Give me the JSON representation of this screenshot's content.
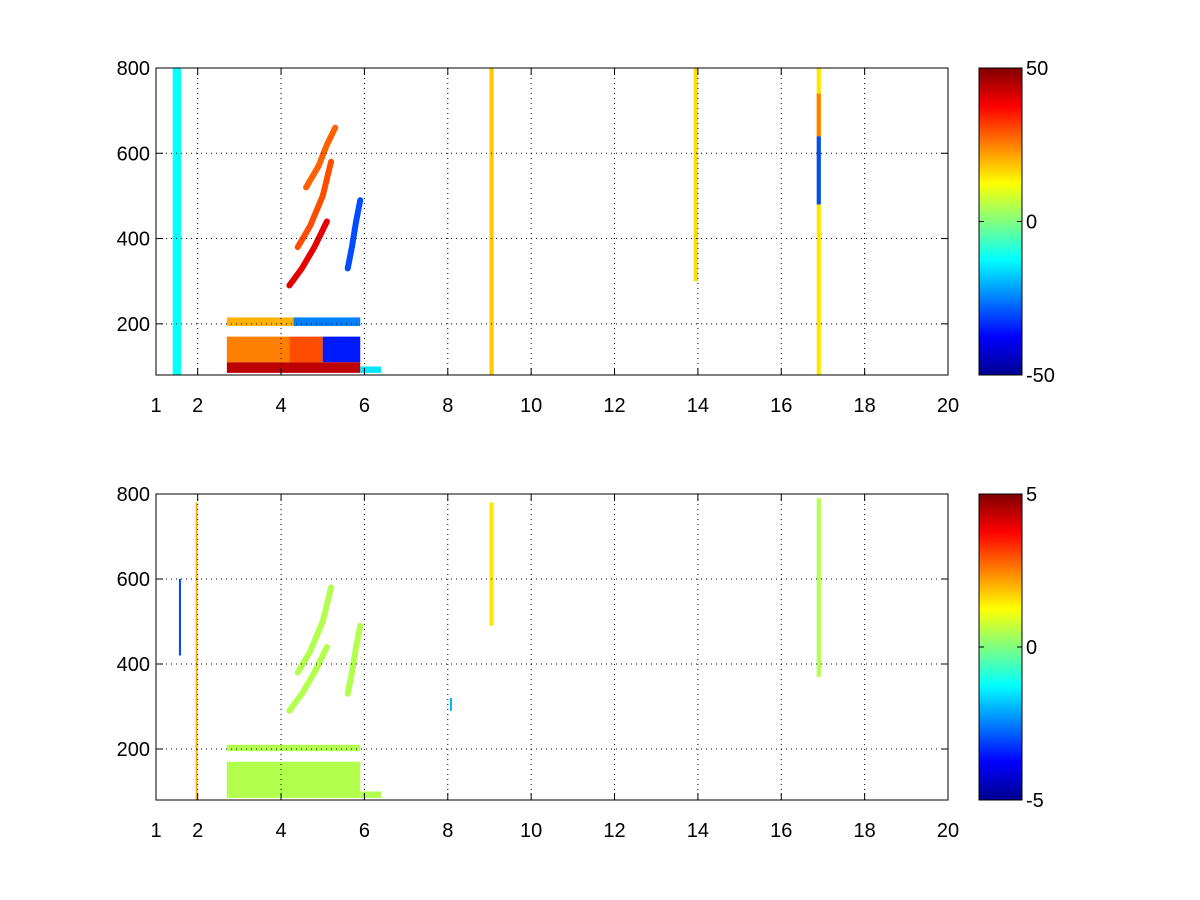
{
  "figure": {
    "colormap": "jet",
    "colormap_stops": [
      "#00008f",
      "#0000ff",
      "#0080ff",
      "#00ffff",
      "#80ff80",
      "#ffff00",
      "#ff8000",
      "#ff0000",
      "#800000"
    ],
    "background_color": "#ffffff",
    "grid_color": "#000000"
  },
  "chart_data": [
    {
      "type": "heatmap",
      "title": "",
      "xlabel": "",
      "ylabel": "",
      "xlim": [
        1,
        20
      ],
      "ylim": [
        80,
        800
      ],
      "x_ticks": [
        1,
        2,
        4,
        6,
        8,
        10,
        12,
        14,
        16,
        18,
        20
      ],
      "x_tick_labels": [
        "1",
        "2",
        "4",
        "6",
        "8",
        "10",
        "12",
        "14",
        "16",
        "18",
        "20"
      ],
      "y_ticks": [
        200,
        400,
        600,
        800
      ],
      "y_tick_labels": [
        "200",
        "400",
        "600",
        "800"
      ],
      "grid": true,
      "grid_style": "dotted",
      "colorbar": {
        "range": [
          -50,
          50
        ],
        "ticks": [
          50,
          0,
          -50
        ],
        "tick_labels": [
          "50",
          "0",
          "-50"
        ]
      },
      "features": [
        {
          "kind": "band",
          "x": [
            2.7,
            5.9
          ],
          "y": [
            85,
            110
          ],
          "value": 44
        },
        {
          "kind": "band",
          "x": [
            2.7,
            4.2
          ],
          "y": [
            110,
            170
          ],
          "value": 25
        },
        {
          "kind": "band",
          "x": [
            4.2,
            5.0
          ],
          "y": [
            110,
            170
          ],
          "value": 30
        },
        {
          "kind": "band",
          "x": [
            5.0,
            5.9
          ],
          "y": [
            110,
            170
          ],
          "value": -35
        },
        {
          "kind": "band",
          "x": [
            2.7,
            4.3
          ],
          "y": [
            195,
            215
          ],
          "value": 20
        },
        {
          "kind": "band",
          "x": [
            4.3,
            5.9
          ],
          "y": [
            195,
            215
          ],
          "value": -25
        },
        {
          "kind": "band",
          "x": [
            5.9,
            6.4
          ],
          "y": [
            85,
            100
          ],
          "value": -15
        },
        {
          "kind": "band",
          "x": [
            1.4,
            1.6
          ],
          "y": [
            80,
            800
          ],
          "value": -12
        },
        {
          "kind": "band",
          "x": [
            9.0,
            9.1
          ],
          "y": [
            80,
            800
          ],
          "value": 18
        },
        {
          "kind": "band",
          "x": [
            13.9,
            14.0
          ],
          "y": [
            300,
            800
          ],
          "value": 16
        },
        {
          "kind": "band",
          "x": [
            16.85,
            16.95
          ],
          "y": [
            80,
            800
          ],
          "value": 15
        },
        {
          "kind": "band",
          "x": [
            16.85,
            16.95
          ],
          "y": [
            480,
            640
          ],
          "value": -30
        },
        {
          "kind": "band",
          "x": [
            16.85,
            16.95
          ],
          "y": [
            640,
            740
          ],
          "value": 25
        },
        {
          "kind": "curve",
          "x": [
            4.2,
            4.5,
            4.8,
            5.1
          ],
          "y": [
            290,
            330,
            380,
            440
          ],
          "value": 40
        },
        {
          "kind": "curve",
          "x": [
            4.4,
            4.7,
            5.0,
            5.2
          ],
          "y": [
            380,
            430,
            500,
            580
          ],
          "value": 30
        },
        {
          "kind": "curve",
          "x": [
            4.6,
            4.9,
            5.1,
            5.3
          ],
          "y": [
            520,
            570,
            620,
            660
          ],
          "value": 28
        },
        {
          "kind": "curve",
          "x": [
            5.6,
            5.7,
            5.8,
            5.9
          ],
          "y": [
            330,
            380,
            440,
            490
          ],
          "value": -30
        }
      ]
    },
    {
      "type": "heatmap",
      "title": "",
      "xlabel": "",
      "ylabel": "",
      "xlim": [
        1,
        20
      ],
      "ylim": [
        80,
        800
      ],
      "x_ticks": [
        1,
        2,
        4,
        6,
        8,
        10,
        12,
        14,
        16,
        18,
        20
      ],
      "x_tick_labels": [
        "1",
        "2",
        "4",
        "6",
        "8",
        "10",
        "12",
        "14",
        "16",
        "18",
        "20"
      ],
      "y_ticks": [
        200,
        400,
        600,
        800
      ],
      "y_tick_labels": [
        "200",
        "400",
        "600",
        "800"
      ],
      "grid": true,
      "grid_style": "dotted",
      "colorbar": {
        "range": [
          -5,
          5
        ],
        "ticks": [
          5,
          0,
          -5
        ],
        "tick_labels": [
          "5",
          "0",
          "-5"
        ]
      },
      "features": [
        {
          "kind": "band",
          "x": [
            2.7,
            5.9
          ],
          "y": [
            85,
            170
          ],
          "value": 0.5
        },
        {
          "kind": "band",
          "x": [
            2.7,
            5.9
          ],
          "y": [
            195,
            210
          ],
          "value": 0.5
        },
        {
          "kind": "band",
          "x": [
            5.9,
            6.4
          ],
          "y": [
            85,
            100
          ],
          "value": 0.5
        },
        {
          "kind": "band",
          "x": [
            9.0,
            9.1
          ],
          "y": [
            490,
            780
          ],
          "value": 1.5
        },
        {
          "kind": "band",
          "x": [
            16.85,
            16.95
          ],
          "y": [
            370,
            790
          ],
          "value": 0.5
        },
        {
          "kind": "band",
          "x": [
            8.05,
            8.1
          ],
          "y": [
            290,
            320
          ],
          "value": -2
        },
        {
          "kind": "band",
          "x": [
            1.55,
            1.6
          ],
          "y": [
            420,
            600
          ],
          "value": -3
        },
        {
          "kind": "band",
          "x": [
            1.95,
            2.0
          ],
          "y": [
            80,
            780
          ],
          "value": 2
        },
        {
          "kind": "curve",
          "x": [
            4.2,
            4.5,
            4.8,
            5.1
          ],
          "y": [
            290,
            330,
            380,
            440
          ],
          "value": 0.5
        },
        {
          "kind": "curve",
          "x": [
            4.4,
            4.7,
            5.0,
            5.2
          ],
          "y": [
            380,
            430,
            500,
            580
          ],
          "value": 0.5
        },
        {
          "kind": "curve",
          "x": [
            5.6,
            5.7,
            5.8,
            5.9
          ],
          "y": [
            330,
            380,
            440,
            490
          ],
          "value": 0.5
        }
      ]
    }
  ]
}
